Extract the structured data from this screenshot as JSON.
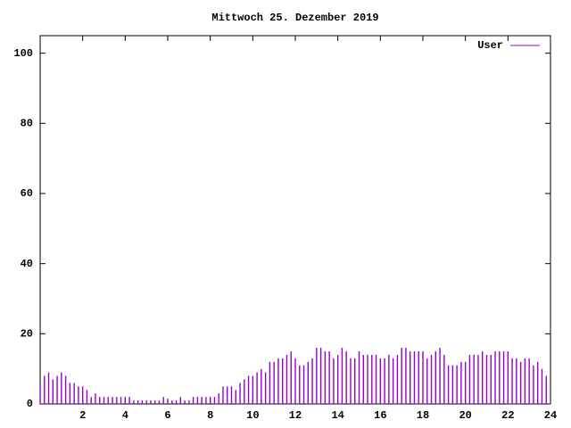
{
  "chart_data": {
    "type": "impulses",
    "title": "Mittwoch 25. Dezember 2019",
    "x": [
      0,
      0.2,
      0.4,
      0.6,
      0.8,
      1,
      1.2,
      1.4,
      1.6,
      1.8,
      2,
      2.2,
      2.4,
      2.6,
      2.8,
      3,
      3.2,
      3.4,
      3.6,
      3.8,
      4,
      4.2,
      4.4,
      4.6,
      4.8,
      5,
      5.2,
      5.4,
      5.6,
      5.8,
      6,
      6.2,
      6.4,
      6.6,
      6.8,
      7,
      7.2,
      7.4,
      7.6,
      7.8,
      8,
      8.2,
      8.4,
      8.6,
      8.8,
      9,
      9.2,
      9.4,
      9.6,
      9.8,
      10,
      10.2,
      10.4,
      10.6,
      10.8,
      11,
      11.2,
      11.4,
      11.6,
      11.8,
      12,
      12.2,
      12.4,
      12.6,
      12.8,
      13,
      13.2,
      13.4,
      13.6,
      13.8,
      14,
      14.2,
      14.4,
      14.6,
      14.8,
      15,
      15.2,
      15.4,
      15.6,
      15.8,
      16,
      16.2,
      16.4,
      16.6,
      16.8,
      17,
      17.2,
      17.4,
      17.6,
      17.8,
      18,
      18.2,
      18.4,
      18.6,
      18.8,
      19,
      19.2,
      19.4,
      19.6,
      19.8,
      20,
      20.2,
      20.4,
      20.6,
      20.8,
      21,
      21.2,
      21.4,
      21.6,
      21.8,
      22,
      22.2,
      22.4,
      22.6,
      22.8,
      23,
      23.2,
      23.4,
      23.6,
      23.8
    ],
    "series": [
      {
        "name": "User",
        "color": "#9400d3",
        "values": [
          6,
          8,
          9,
          7,
          8,
          9,
          8,
          6,
          6,
          5,
          5,
          4,
          2,
          3,
          2,
          2,
          2,
          2,
          2,
          2,
          2,
          2,
          1,
          1,
          1,
          1,
          1,
          1,
          1,
          2,
          1,
          1,
          1,
          2,
          1,
          1,
          2,
          2,
          2,
          2,
          2,
          2,
          3,
          5,
          5,
          5,
          4,
          6,
          7,
          8,
          8,
          9,
          10,
          9,
          12,
          12,
          13,
          13,
          14,
          15,
          13,
          11,
          11,
          12,
          13,
          16,
          16,
          15,
          15,
          13,
          14,
          16,
          15,
          13,
          13,
          15,
          14,
          14,
          14,
          14,
          13,
          13,
          14,
          13,
          14,
          16,
          16,
          15,
          15,
          15,
          15,
          13,
          14,
          15,
          16,
          14,
          11,
          11,
          11,
          12,
          12,
          14,
          14,
          14,
          15,
          14,
          14,
          15,
          15,
          15,
          15,
          13,
          13,
          12,
          13,
          13,
          11,
          12,
          10,
          8
        ]
      }
    ],
    "xlim": [
      0,
      24
    ],
    "xticks": [
      2,
      4,
      6,
      8,
      10,
      12,
      14,
      16,
      18,
      20,
      22,
      24
    ],
    "ylim": [
      0,
      105
    ],
    "yticks": [
      0,
      20,
      40,
      60,
      80,
      100
    ],
    "legend": "top-right"
  }
}
